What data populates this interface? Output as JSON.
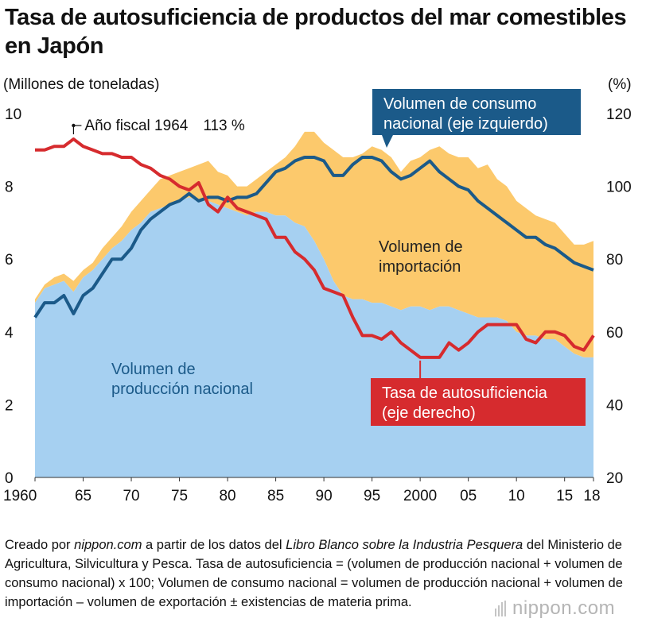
{
  "title": "Tasa de autosuficiencia de productos del mar comestibles en Japón",
  "colors": {
    "production": "#a6d0f1",
    "import": "#fcc96c",
    "consumption": "#1b5a89",
    "rate": "#d62b2e",
    "consumption_box": "#1b5a89",
    "rate_box": "#d62b2e"
  },
  "chart_data": {
    "type": "area",
    "x_tick_labels": [
      "1960",
      "65",
      "70",
      "75",
      "80",
      "85",
      "90",
      "95",
      "2000",
      "05",
      "10",
      "15",
      "18"
    ],
    "xlim": [
      1960,
      2018
    ],
    "y_left": {
      "label": "(Millones de toneladas)",
      "ticks": [
        "0",
        "2",
        "4",
        "6",
        "8",
        "10"
      ],
      "ylim": [
        0,
        10
      ]
    },
    "y_right": {
      "label": "(%)",
      "ticks": [
        "20",
        "40",
        "60",
        "80",
        "100",
        "120"
      ],
      "ylim": [
        20,
        120
      ]
    },
    "x": [
      1960,
      1961,
      1962,
      1963,
      1964,
      1965,
      1966,
      1967,
      1968,
      1969,
      1970,
      1971,
      1972,
      1973,
      1974,
      1975,
      1976,
      1977,
      1978,
      1979,
      1980,
      1981,
      1982,
      1983,
      1984,
      1985,
      1986,
      1987,
      1988,
      1989,
      1990,
      1991,
      1992,
      1993,
      1994,
      1995,
      1996,
      1997,
      1998,
      1999,
      2000,
      2001,
      2002,
      2003,
      2004,
      2005,
      2006,
      2007,
      2008,
      2009,
      2010,
      2011,
      2012,
      2013,
      2014,
      2015,
      2016,
      2017,
      2018
    ],
    "series": [
      {
        "name": "Volumen de producción nacional",
        "kind": "area",
        "axis": "left",
        "values": [
          4.8,
          5.2,
          5.3,
          5.4,
          5.1,
          5.5,
          5.7,
          6.0,
          6.3,
          6.5,
          6.8,
          7.0,
          7.3,
          7.4,
          7.5,
          7.6,
          7.7,
          7.6,
          7.6,
          7.5,
          7.4,
          7.3,
          7.2,
          7.3,
          7.3,
          7.2,
          7.2,
          7.0,
          6.9,
          6.5,
          6.0,
          5.4,
          5.0,
          4.9,
          4.9,
          4.8,
          4.8,
          4.7,
          4.6,
          4.7,
          4.7,
          4.6,
          4.7,
          4.7,
          4.6,
          4.5,
          4.4,
          4.4,
          4.4,
          4.3,
          4.0,
          3.9,
          3.9,
          3.8,
          3.8,
          3.6,
          3.4,
          3.3,
          3.3
        ]
      },
      {
        "name": "Volumen de importación",
        "kind": "area",
        "axis": "left",
        "stacked_on": "Volumen de producción nacional",
        "values": [
          0.1,
          0.1,
          0.2,
          0.2,
          0.3,
          0.2,
          0.2,
          0.3,
          0.3,
          0.4,
          0.5,
          0.6,
          0.6,
          0.8,
          0.8,
          0.8,
          0.8,
          1.0,
          1.1,
          0.9,
          0.9,
          0.7,
          0.8,
          0.9,
          1.1,
          1.4,
          1.6,
          2.1,
          2.6,
          3.0,
          3.2,
          3.6,
          3.8,
          3.9,
          4.0,
          4.3,
          4.2,
          4.1,
          3.8,
          4.0,
          4.1,
          4.4,
          4.4,
          4.2,
          4.2,
          4.3,
          4.1,
          4.2,
          3.8,
          3.7,
          3.6,
          3.5,
          3.3,
          3.3,
          3.2,
          3.1,
          3.0,
          3.1,
          3.2
        ]
      },
      {
        "name": "Volumen de consumo nacional (eje izquierdo)",
        "kind": "line",
        "axis": "left",
        "values": [
          4.4,
          4.8,
          4.8,
          5.0,
          4.5,
          5.0,
          5.2,
          5.6,
          6.0,
          6.0,
          6.3,
          6.8,
          7.1,
          7.3,
          7.5,
          7.6,
          7.8,
          7.6,
          7.7,
          7.7,
          7.6,
          7.7,
          7.7,
          7.8,
          8.1,
          8.4,
          8.5,
          8.7,
          8.8,
          8.8,
          8.7,
          8.3,
          8.3,
          8.6,
          8.8,
          8.8,
          8.7,
          8.4,
          8.2,
          8.3,
          8.5,
          8.7,
          8.4,
          8.2,
          8.0,
          7.9,
          7.6,
          7.4,
          7.2,
          7.0,
          6.8,
          6.6,
          6.6,
          6.4,
          6.3,
          6.1,
          5.9,
          5.8,
          5.7
        ]
      },
      {
        "name": "Tasa de autosuficiencia (eje derecho)",
        "kind": "line",
        "axis": "right",
        "values": [
          110,
          110,
          111,
          111,
          113,
          111,
          110,
          109,
          109,
          108,
          108,
          106,
          105,
          103,
          102,
          100,
          99,
          101,
          95,
          93,
          97,
          94,
          93,
          92,
          91,
          86,
          86,
          82,
          80,
          77,
          72,
          71,
          70,
          64,
          59,
          59,
          58,
          60,
          57,
          55,
          53,
          53,
          53,
          57,
          55,
          57,
          60,
          62,
          62,
          62,
          62,
          58,
          57,
          60,
          60,
          59,
          56,
          55,
          59
        ]
      }
    ],
    "annotations": {
      "peak": "Año fiscal 1964　113 %",
      "production_area_label": [
        "Volumen de",
        "producción nacional"
      ],
      "import_area_label": [
        "Volumen de",
        "importación"
      ],
      "consumption_box": [
        "Volumen de consumo",
        "nacional (eje izquierdo)"
      ],
      "rate_box": [
        "Tasa de autosuficiencia",
        "(eje derecho)"
      ]
    },
    "grid": "horizontal",
    "legend": "none"
  },
  "notes": {
    "prefix": "Creado por ",
    "source_site": "nippon.com",
    "middle": " a partir de los datos del ",
    "source_doc": "Libro Blanco sobre la Industria Pesquera",
    "rest": " del Ministerio de Agricultura, Silvicultura y Pesca. Tasa de autosuficiencia = (volumen de producción nacional + volumen de consumo nacional) x 100; Volumen de consumo nacional = volumen de producción nacional + volumen de importación – volumen de exportación ± existencias de materia prima."
  },
  "logo": "nippon.com"
}
